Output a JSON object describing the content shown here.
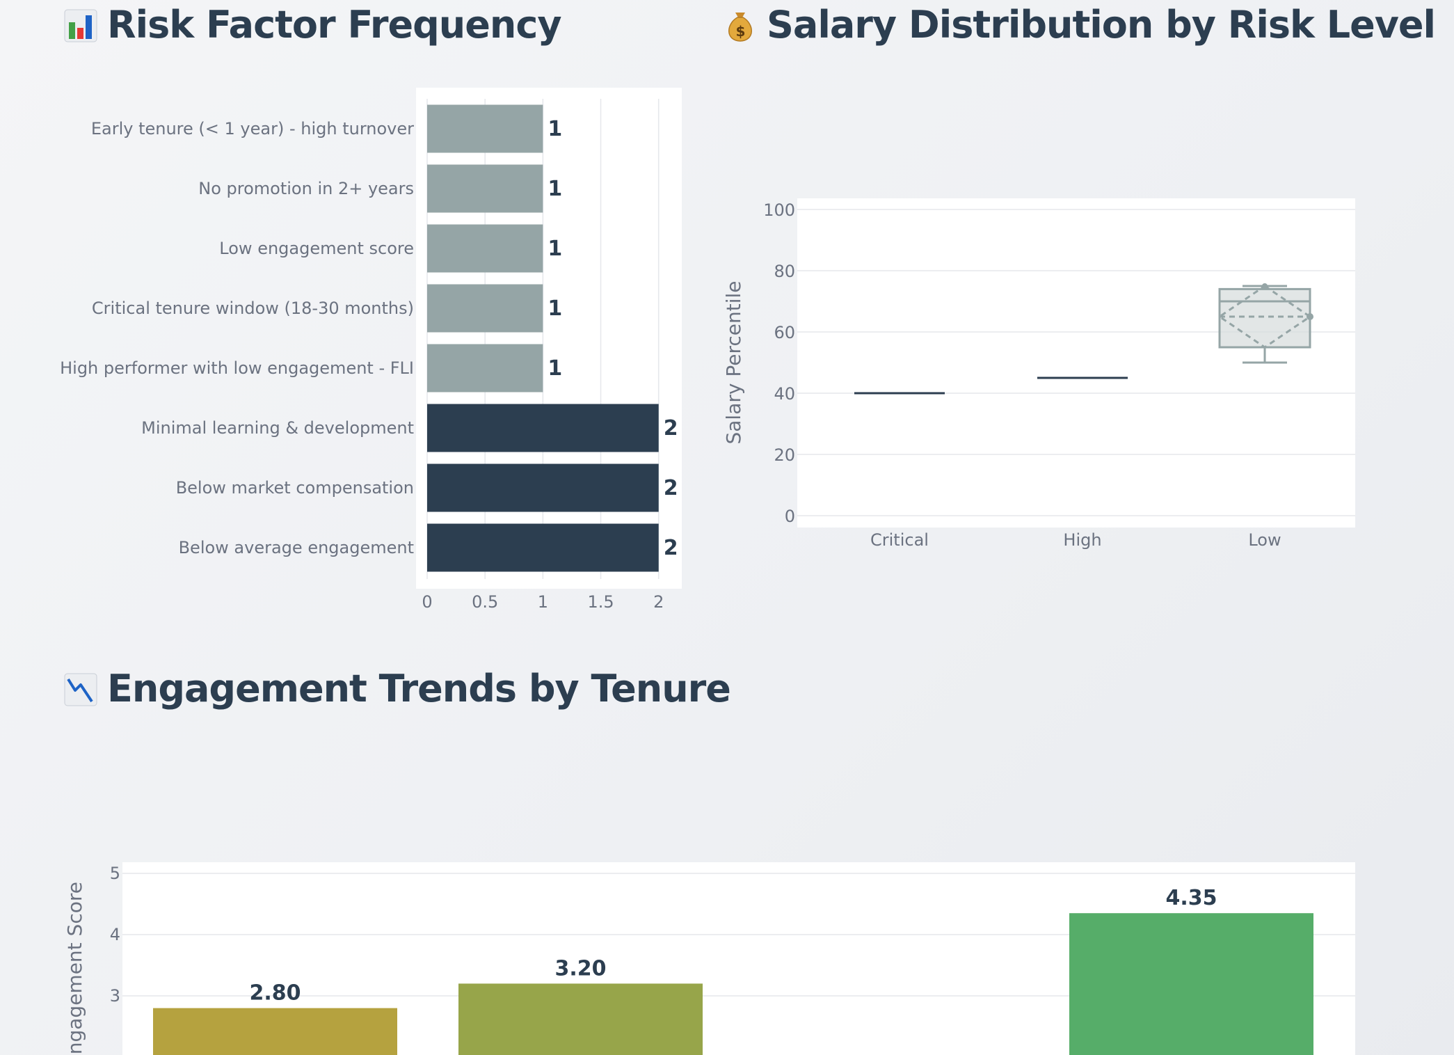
{
  "sections": {
    "risk": {
      "title": "Risk Factor Frequency",
      "icon": "bar-chart-emoji-icon"
    },
    "salary": {
      "title": "Salary Distribution by Risk Level",
      "icon": "money-bag-emoji-icon"
    },
    "engagement": {
      "title": "Engagement Trends by Tenure",
      "icon": "chart-decreasing-emoji-icon"
    }
  },
  "colors": {
    "plot_bg": "#ffffff",
    "grid": "#e5e7eb",
    "axis_text": "#6b7280",
    "dark_bar": "#2c3e50",
    "light_bar": "#95a5a6",
    "box_fill": "#d5dbdb",
    "box_line": "#95a5a6"
  },
  "chart_data": [
    {
      "id": "risk-factor-frequency",
      "type": "bar",
      "orientation": "horizontal",
      "title": "Risk Factor Frequency",
      "categories": [
        "Early tenure (< 1 year) - high turnover",
        "No promotion in 2+ years",
        "Low engagement score",
        "Critical tenure window (18-30 months)",
        "High performer with low engagement - FLI",
        "Minimal learning & development",
        "Below market compensation",
        "Below average engagement"
      ],
      "values": [
        1,
        1,
        1,
        1,
        1,
        2,
        2,
        2
      ],
      "data_labels": [
        "1",
        "1",
        "1",
        "1",
        "1",
        "2",
        "2",
        "2"
      ],
      "bar_colors": [
        "#95a5a6",
        "#95a5a6",
        "#95a5a6",
        "#95a5a6",
        "#95a5a6",
        "#2c3e50",
        "#2c3e50",
        "#2c3e50"
      ],
      "xlim": [
        0,
        2.2
      ],
      "xticks": [
        0,
        0.5,
        1,
        1.5,
        2
      ],
      "xtick_labels": [
        "0",
        "0.5",
        "1",
        "1.5",
        "2"
      ],
      "grid": true
    },
    {
      "id": "salary-distribution",
      "type": "box",
      "title": "Salary Distribution by Risk Level",
      "categories": [
        "Critical",
        "High",
        "Low"
      ],
      "ylabel": "Salary Percentile",
      "ylim": [
        0,
        100
      ],
      "yticks": [
        0,
        20,
        40,
        60,
        80,
        100
      ],
      "boxes": [
        {
          "name": "Critical",
          "min": 40,
          "q1": 40,
          "median": 40,
          "q3": 40,
          "max": 40,
          "color": "#2c3e50"
        },
        {
          "name": "High",
          "min": 45,
          "q1": 45,
          "median": 45,
          "q3": 45,
          "max": 45,
          "color": "#2c3e50"
        },
        {
          "name": "Low",
          "min": 50,
          "q1": 55,
          "median": 70,
          "q3": 74,
          "max": 75,
          "mean": 65,
          "sd": 10,
          "color": "#95a5a6"
        }
      ],
      "grid": true
    },
    {
      "id": "engagement-by-tenure",
      "type": "bar",
      "title": "Engagement Trends by Tenure",
      "ylabel": "Engagement Score",
      "ylim": [
        0,
        5
      ],
      "yticks": [
        3,
        4,
        5
      ],
      "values": [
        2.8,
        3.2,
        null,
        4.35
      ],
      "data_labels": [
        "2.80",
        "3.20",
        "",
        "4.35"
      ],
      "bar_colors": [
        "#b5a23f",
        "#97a54a",
        "",
        "#56ad69"
      ],
      "grid": true
    }
  ]
}
